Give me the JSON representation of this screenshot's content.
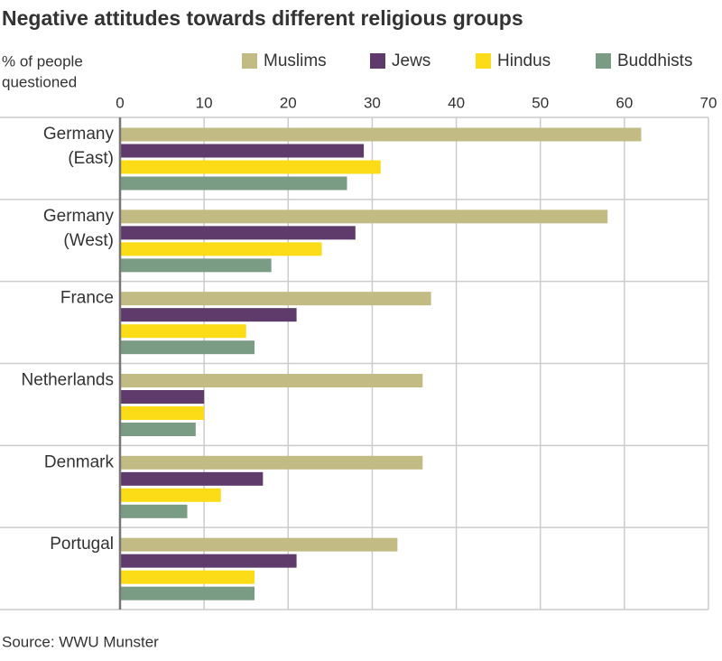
{
  "chart_data": {
    "type": "bar",
    "orientation": "horizontal",
    "title": "Negative attitudes towards different religious groups",
    "x_label": [
      "% of people",
      "questioned"
    ],
    "source": "Source: WWU Munster",
    "categories": [
      [
        "Germany",
        "(East)"
      ],
      [
        "Germany",
        "(West)"
      ],
      [
        "France"
      ],
      [
        "Netherlands"
      ],
      [
        "Denmark"
      ],
      [
        "Portugal"
      ]
    ],
    "series": [
      {
        "name": "Muslims",
        "color": "#c2bc84",
        "values": [
          62,
          58,
          37,
          36,
          36,
          33
        ]
      },
      {
        "name": "Jews",
        "color": "#5e3b6b",
        "values": [
          29,
          28,
          21,
          10,
          17,
          21
        ]
      },
      {
        "name": "Hindus",
        "color": "#fbdc16",
        "values": [
          31,
          24,
          15,
          10,
          12,
          16
        ]
      },
      {
        "name": "Buddhists",
        "color": "#7b9c84",
        "values": [
          27,
          18,
          16,
          9,
          8,
          16
        ]
      }
    ],
    "xlim": [
      0,
      70
    ],
    "xticks": [
      0,
      10,
      20,
      30,
      40,
      50,
      60,
      70
    ],
    "grid": true
  }
}
